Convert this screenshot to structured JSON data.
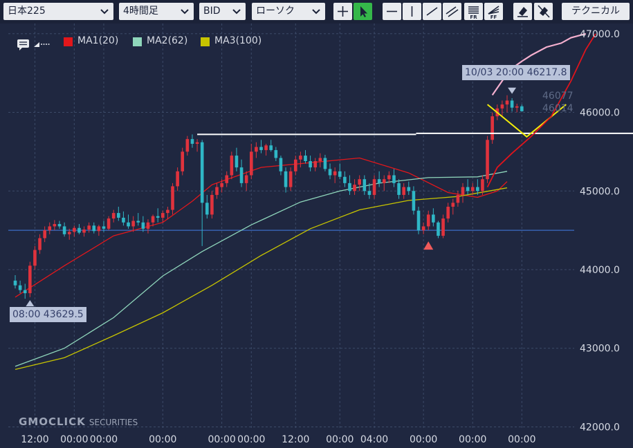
{
  "toolbar": {
    "symbol": "日本225",
    "timeframe": "4時間足",
    "price_type": "BID",
    "chart_style": "ローソク",
    "technical_button": "テクニカル",
    "tools": [
      "crosshair-icon",
      "cursor-icon",
      "horizontal-line-icon",
      "vertical-line-icon",
      "trend-line-icon",
      "channel-icon",
      "fibonacci-retracement-icon",
      "fibonacci-fan-icon",
      "eraser-icon",
      "eraser-all-icon"
    ]
  },
  "legend": {
    "items": [
      {
        "label": "MA1(20)",
        "color": "#e3171b"
      },
      {
        "label": "MA2(62)",
        "color": "#8fd6bb"
      },
      {
        "label": "MA3(100)",
        "color": "#c7c400"
      }
    ]
  },
  "tooltips": {
    "high_label": "10/03 20:00 46217.8",
    "low_label": "08:00 43629.5"
  },
  "price_labels": {
    "current_1": "46077",
    "current_2": "46014"
  },
  "logo": {
    "main": "GMOCLICK",
    "sub": "SECURITIES"
  },
  "colors": {
    "background": "#1f2740",
    "up_candle": "#e0333d",
    "down_candle": "#2fb7c6",
    "grid": "#3c4a68",
    "annotation_white": "#ffffff",
    "annotation_yellow": "#f2ec0a",
    "annotation_pink": "#f5b0cf",
    "annotation_red": "#e0141c",
    "blue_line": "#3b6cc4"
  },
  "chart_data": {
    "type": "candlestick",
    "yticks": [
      42000,
      43000,
      44000,
      45000,
      46000,
      47000
    ],
    "ytick_labels": [
      "42000.0",
      "43000.0",
      "44000.0",
      "45000.0",
      "46000.0",
      "47000.0"
    ],
    "ylim": [
      41960,
      47130
    ],
    "xtick_labels": [
      "12:00",
      "00:00",
      "00:00",
      "00:00",
      "00:00",
      "00:00",
      "12:00",
      "00:00",
      "04:00",
      "00:00",
      "00:00",
      "00:00"
    ],
    "xtick_index": [
      4,
      12,
      18,
      30,
      42,
      48,
      57,
      66,
      73,
      83,
      93,
      103
    ],
    "bars_count": 105,
    "candles": [
      [
        43860,
        43930,
        43760,
        43800
      ],
      [
        43800,
        43860,
        43700,
        43740
      ],
      [
        43740,
        43820,
        43630,
        43700
      ],
      [
        43700,
        44100,
        43650,
        44050
      ],
      [
        44050,
        44300,
        44000,
        44250
      ],
      [
        44250,
        44450,
        44200,
        44400
      ],
      [
        44400,
        44550,
        44350,
        44500
      ],
      [
        44500,
        44600,
        44450,
        44550
      ],
      [
        44550,
        44630,
        44500,
        44580
      ],
      [
        44580,
        44620,
        44520,
        44550
      ],
      [
        44550,
        44600,
        44420,
        44450
      ],
      [
        44450,
        44520,
        44380,
        44480
      ],
      [
        44480,
        44560,
        44420,
        44530
      ],
      [
        44530,
        44580,
        44450,
        44470
      ],
      [
        44470,
        44550,
        44420,
        44510
      ],
      [
        44510,
        44600,
        44470,
        44560
      ],
      [
        44560,
        44600,
        44460,
        44490
      ],
      [
        44490,
        44570,
        44430,
        44550
      ],
      [
        44550,
        44620,
        44480,
        44520
      ],
      [
        44520,
        44680,
        44500,
        44650
      ],
      [
        44650,
        44760,
        44600,
        44720
      ],
      [
        44720,
        44800,
        44620,
        44660
      ],
      [
        44660,
        44740,
        44560,
        44600
      ],
      [
        44600,
        44700,
        44520,
        44550
      ],
      [
        44550,
        44680,
        44480,
        44620
      ],
      [
        44620,
        44720,
        44560,
        44600
      ],
      [
        44600,
        44680,
        44480,
        44520
      ],
      [
        44520,
        44640,
        44460,
        44600
      ],
      [
        44600,
        44700,
        44550,
        44680
      ],
      [
        44680,
        44780,
        44600,
        44660
      ],
      [
        44660,
        44750,
        44600,
        44720
      ],
      [
        44720,
        44800,
        44640,
        44760
      ],
      [
        44760,
        45100,
        44700,
        45060
      ],
      [
        45060,
        45300,
        45000,
        45250
      ],
      [
        45250,
        45550,
        45200,
        45500
      ],
      [
        45500,
        45700,
        45450,
        45660
      ],
      [
        45660,
        45720,
        45550,
        45600
      ],
      [
        45600,
        45660,
        45500,
        45620
      ],
      [
        45620,
        45650,
        44300,
        44850
      ],
      [
        44850,
        44950,
        44650,
        44700
      ],
      [
        44700,
        45000,
        44650,
        44950
      ],
      [
        44950,
        45100,
        44900,
        45050
      ],
      [
        45050,
        45150,
        44980,
        45100
      ],
      [
        45100,
        45250,
        45050,
        45200
      ],
      [
        45200,
        45500,
        45150,
        45450
      ],
      [
        45450,
        45550,
        45250,
        45300
      ],
      [
        45300,
        45400,
        45050,
        45100
      ],
      [
        45100,
        45250,
        45000,
        45200
      ],
      [
        45200,
        45600,
        45150,
        45500
      ],
      [
        45500,
        45620,
        45420,
        45560
      ],
      [
        45560,
        45650,
        45480,
        45520
      ],
      [
        45520,
        45600,
        45450,
        45580
      ],
      [
        45580,
        45650,
        45500,
        45520
      ],
      [
        45520,
        45560,
        45380,
        45420
      ],
      [
        45420,
        45450,
        45200,
        45250
      ],
      [
        45250,
        45300,
        44980,
        45050
      ],
      [
        45050,
        45300,
        45000,
        45250
      ],
      [
        45250,
        45450,
        45200,
        45400
      ],
      [
        45400,
        45500,
        45300,
        45450
      ],
      [
        45450,
        45520,
        45350,
        45380
      ],
      [
        45380,
        45450,
        45250,
        45300
      ],
      [
        45300,
        45420,
        45250,
        45380
      ],
      [
        45380,
        45480,
        45300,
        45420
      ],
      [
        45420,
        45460,
        45250,
        45280
      ],
      [
        45280,
        45350,
        45150,
        45200
      ],
      [
        45200,
        45300,
        45100,
        45250
      ],
      [
        45250,
        45350,
        45150,
        45180
      ],
      [
        45180,
        45250,
        45050,
        45100
      ],
      [
        45100,
        45200,
        44950,
        45000
      ],
      [
        45000,
        45150,
        44950,
        45080
      ],
      [
        45080,
        45200,
        45000,
        45150
      ],
      [
        45150,
        45200,
        44950,
        45000
      ],
      [
        45000,
        45100,
        44900,
        44950
      ],
      [
        44950,
        45200,
        44900,
        45150
      ],
      [
        45150,
        45250,
        45050,
        45100
      ],
      [
        45100,
        45200,
        45000,
        45150
      ],
      [
        45150,
        45250,
        45100,
        45200
      ],
      [
        45200,
        45280,
        45050,
        45100
      ],
      [
        45100,
        45150,
        44900,
        44950
      ],
      [
        44950,
        45100,
        44900,
        45050
      ],
      [
        45050,
        45120,
        44950,
        45000
      ],
      [
        45000,
        45060,
        44700,
        44750
      ],
      [
        44750,
        44800,
        44450,
        44500
      ],
      [
        44500,
        44600,
        44450,
        44550
      ],
      [
        44550,
        44750,
        44500,
        44700
      ],
      [
        44700,
        44780,
        44550,
        44600
      ],
      [
        44600,
        44620,
        44400,
        44430
      ],
      [
        44430,
        44700,
        44400,
        44650
      ],
      [
        44650,
        44850,
        44600,
        44800
      ],
      [
        44800,
        44900,
        44700,
        44850
      ],
      [
        44850,
        45000,
        44800,
        44950
      ],
      [
        44950,
        45100,
        44850,
        45050
      ],
      [
        45050,
        45150,
        44950,
        45000
      ],
      [
        45000,
        45100,
        44950,
        45050
      ],
      [
        45050,
        45150,
        44950,
        45000
      ],
      [
        45000,
        45200,
        44950,
        45150
      ],
      [
        45150,
        45700,
        45100,
        45650
      ],
      [
        45650,
        46000,
        45600,
        45950
      ],
      [
        45950,
        46100,
        45900,
        46050
      ],
      [
        46050,
        46150,
        45950,
        46100
      ],
      [
        46100,
        46218,
        46000,
        46150
      ],
      [
        46150,
        46180,
        46010,
        46060
      ],
      [
        46060,
        46110,
        46000,
        46077
      ],
      [
        46077,
        46100,
        46010,
        46014
      ]
    ],
    "series": [
      {
        "name": "MA1(20)",
        "values": [
          [
            0,
            43650
          ],
          [
            10,
            44050
          ],
          [
            20,
            44430
          ],
          [
            30,
            44600
          ],
          [
            36,
            44870
          ],
          [
            40,
            45080
          ],
          [
            50,
            45300
          ],
          [
            60,
            45360
          ],
          [
            70,
            45420
          ],
          [
            80,
            45230
          ],
          [
            88,
            44980
          ],
          [
            94,
            44920
          ],
          [
            98,
            45000
          ],
          [
            100,
            45120
          ]
        ]
      },
      {
        "name": "MA2(62)",
        "values": [
          [
            0,
            42770
          ],
          [
            10,
            43000
          ],
          [
            20,
            43390
          ],
          [
            30,
            43920
          ],
          [
            38,
            44230
          ],
          [
            48,
            44570
          ],
          [
            58,
            44860
          ],
          [
            66,
            45000
          ],
          [
            74,
            45100
          ],
          [
            84,
            45170
          ],
          [
            94,
            45180
          ],
          [
            100,
            45250
          ]
        ]
      },
      {
        "name": "MA3(100)",
        "values": [
          [
            0,
            42730
          ],
          [
            10,
            42880
          ],
          [
            20,
            43160
          ],
          [
            30,
            43450
          ],
          [
            40,
            43800
          ],
          [
            50,
            44180
          ],
          [
            60,
            44520
          ],
          [
            70,
            44760
          ],
          [
            80,
            44880
          ],
          [
            90,
            44930
          ],
          [
            100,
            45040
          ]
        ]
      }
    ],
    "annotations": {
      "white_line_y": 45720,
      "blue_line_y": 44500,
      "yellow_v_points": [
        [
          96,
          46100
        ],
        [
          104,
          45690
        ],
        [
          112,
          46100
        ]
      ],
      "pink_path": [
        [
          97,
          46220
        ],
        [
          99,
          46400
        ],
        [
          101,
          46560
        ],
        [
          103,
          46650
        ],
        [
          105,
          46730
        ],
        [
          108,
          46830
        ],
        [
          111,
          46880
        ],
        [
          113,
          46950
        ],
        [
          116,
          47000
        ]
      ],
      "red_path": [
        [
          96,
          45050
        ],
        [
          98,
          45300
        ],
        [
          101,
          45480
        ],
        [
          105,
          45700
        ],
        [
          109,
          45950
        ],
        [
          113,
          46400
        ],
        [
          116,
          46800
        ],
        [
          118,
          47000
        ]
      ],
      "low_marker": {
        "index": 3,
        "price": 43629.5
      },
      "up_arrow": {
        "index": 84,
        "price": 44430
      }
    }
  }
}
